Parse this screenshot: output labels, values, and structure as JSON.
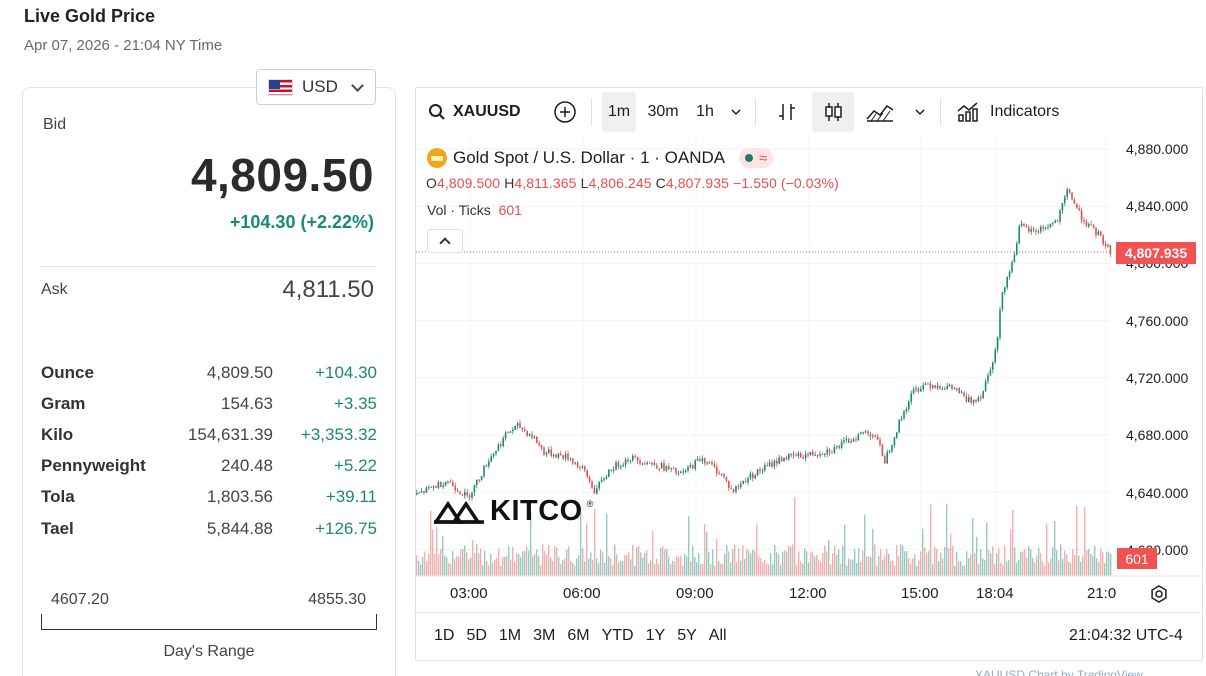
{
  "header": {
    "title": "Live Gold Price",
    "subtitle": "Apr 07, 2026 - 21:04 NY Time"
  },
  "currency": {
    "selected": "USD"
  },
  "quote": {
    "bid_label": "Bid",
    "bid": "4,809.50",
    "change": "+104.30 (+2.22%)",
    "ask_label": "Ask",
    "ask": "4,811.50"
  },
  "units": [
    {
      "name": "Ounce",
      "price": "4,809.50",
      "change": "+104.30"
    },
    {
      "name": "Gram",
      "price": "154.63",
      "change": "+3.35"
    },
    {
      "name": "Kilo",
      "price": "154,631.39",
      "change": "+3,353.32"
    },
    {
      "name": "Pennyweight",
      "price": "240.48",
      "change": "+5.22"
    },
    {
      "name": "Tola",
      "price": "1,803.56",
      "change": "+39.11"
    },
    {
      "name": "Tael",
      "price": "5,844.88",
      "change": "+126.75"
    }
  ],
  "day_range": {
    "low": "4607.20",
    "high": "4855.30",
    "label": "Day's Range"
  },
  "toolbar": {
    "symbol": "XAUUSD",
    "intervals": [
      "1m",
      "30m",
      "1h"
    ],
    "active_interval": "1m",
    "indicators_label": "Indicators"
  },
  "legend": {
    "title": "Gold Spot / U.S. Dollar · 1 · OANDA",
    "o_label": "O",
    "o": "4,809.500",
    "h_label": "H",
    "h": "4,811.365",
    "l_label": "L",
    "l": "4,806.245",
    "c_label": "C",
    "c": "4,807.935",
    "change": "−1.550 (−0.03%)",
    "vol_label": "Vol · Ticks",
    "vol": "601"
  },
  "watermark": {
    "text": "KITCO",
    "reg": "®"
  },
  "last_price_tag": "4,807.935",
  "volume_tag": "601",
  "time_ranges": [
    "1D",
    "5D",
    "1M",
    "3M",
    "6M",
    "YTD",
    "1Y",
    "5Y",
    "All"
  ],
  "clock": "21:04:32 UTC-4",
  "footer_link": "XAUUSD Chart by TradingView",
  "colors": {
    "up": "#1b8a72",
    "down": "#e45050",
    "price_tag": "#f25252"
  },
  "chart_data": {
    "type": "line",
    "title": "Gold Spot / U.S. Dollar · 1 · OANDA",
    "xlabel": "",
    "ylabel": "",
    "x_ticks": [
      "03:00",
      "06:00",
      "09:00",
      "12:00",
      "15:00",
      "18:04",
      "21:0"
    ],
    "y_ticks": [
      "4,880.000",
      "4,840.000",
      "4,800.000",
      "4,760.000",
      "4,720.000",
      "4,680.000",
      "4,640.000",
      "4,600.000"
    ],
    "ylim": [
      4600,
      4880
    ],
    "series": [
      {
        "values": [
          [
            0,
            4638
          ],
          [
            60,
            4648
          ],
          [
            100,
            4636
          ],
          [
            120,
            4648
          ],
          [
            140,
            4662
          ],
          [
            180,
            4682
          ],
          [
            200,
            4686
          ],
          [
            230,
            4678
          ],
          [
            250,
            4668
          ],
          [
            300,
            4664
          ],
          [
            330,
            4654
          ],
          [
            350,
            4640
          ],
          [
            380,
            4656
          ],
          [
            420,
            4664
          ],
          [
            480,
            4658
          ],
          [
            520,
            4652
          ],
          [
            560,
            4664
          ],
          [
            600,
            4652
          ],
          [
            620,
            4640
          ],
          [
            650,
            4650
          ],
          [
            680,
            4656
          ],
          [
            720,
            4664
          ],
          [
            770,
            4666
          ],
          [
            820,
            4670
          ],
          [
            860,
            4678
          ],
          [
            880,
            4682
          ],
          [
            900,
            4680
          ],
          [
            920,
            4662
          ],
          [
            950,
            4690
          ],
          [
            975,
            4710
          ],
          [
            1000,
            4716
          ],
          [
            1060,
            4712
          ],
          [
            1080,
            4704
          ],
          [
            1090,
            4704
          ],
          [
            1110,
            4708
          ],
          [
            1140,
            4742
          ],
          [
            1150,
            4780
          ],
          [
            1170,
            4800
          ],
          [
            1185,
            4826
          ],
          [
            1210,
            4822
          ],
          [
            1240,
            4826
          ],
          [
            1260,
            4830
          ],
          [
            1280,
            4852
          ],
          [
            1300,
            4836
          ],
          [
            1320,
            4826
          ],
          [
            1340,
            4820
          ],
          [
            1364,
            4808
          ]
        ]
      }
    ]
  }
}
